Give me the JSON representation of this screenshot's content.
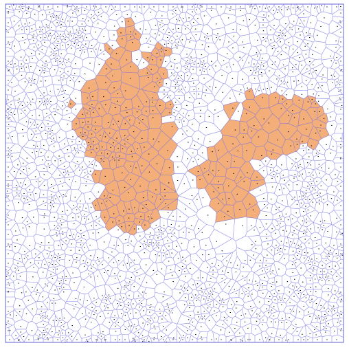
{
  "diagram": {
    "type": "voronoi-map",
    "colors": {
      "background": "#ffffff",
      "cell_edge": "#6f6fe6",
      "land_fill": "#f4ae7a",
      "site_dot": "#111111",
      "border": "#7b7bd8"
    },
    "regions": [
      {
        "name": "land-left",
        "fill": "land"
      },
      {
        "name": "land-right",
        "fill": "land"
      },
      {
        "name": "islet",
        "fill": "land"
      }
    ]
  }
}
